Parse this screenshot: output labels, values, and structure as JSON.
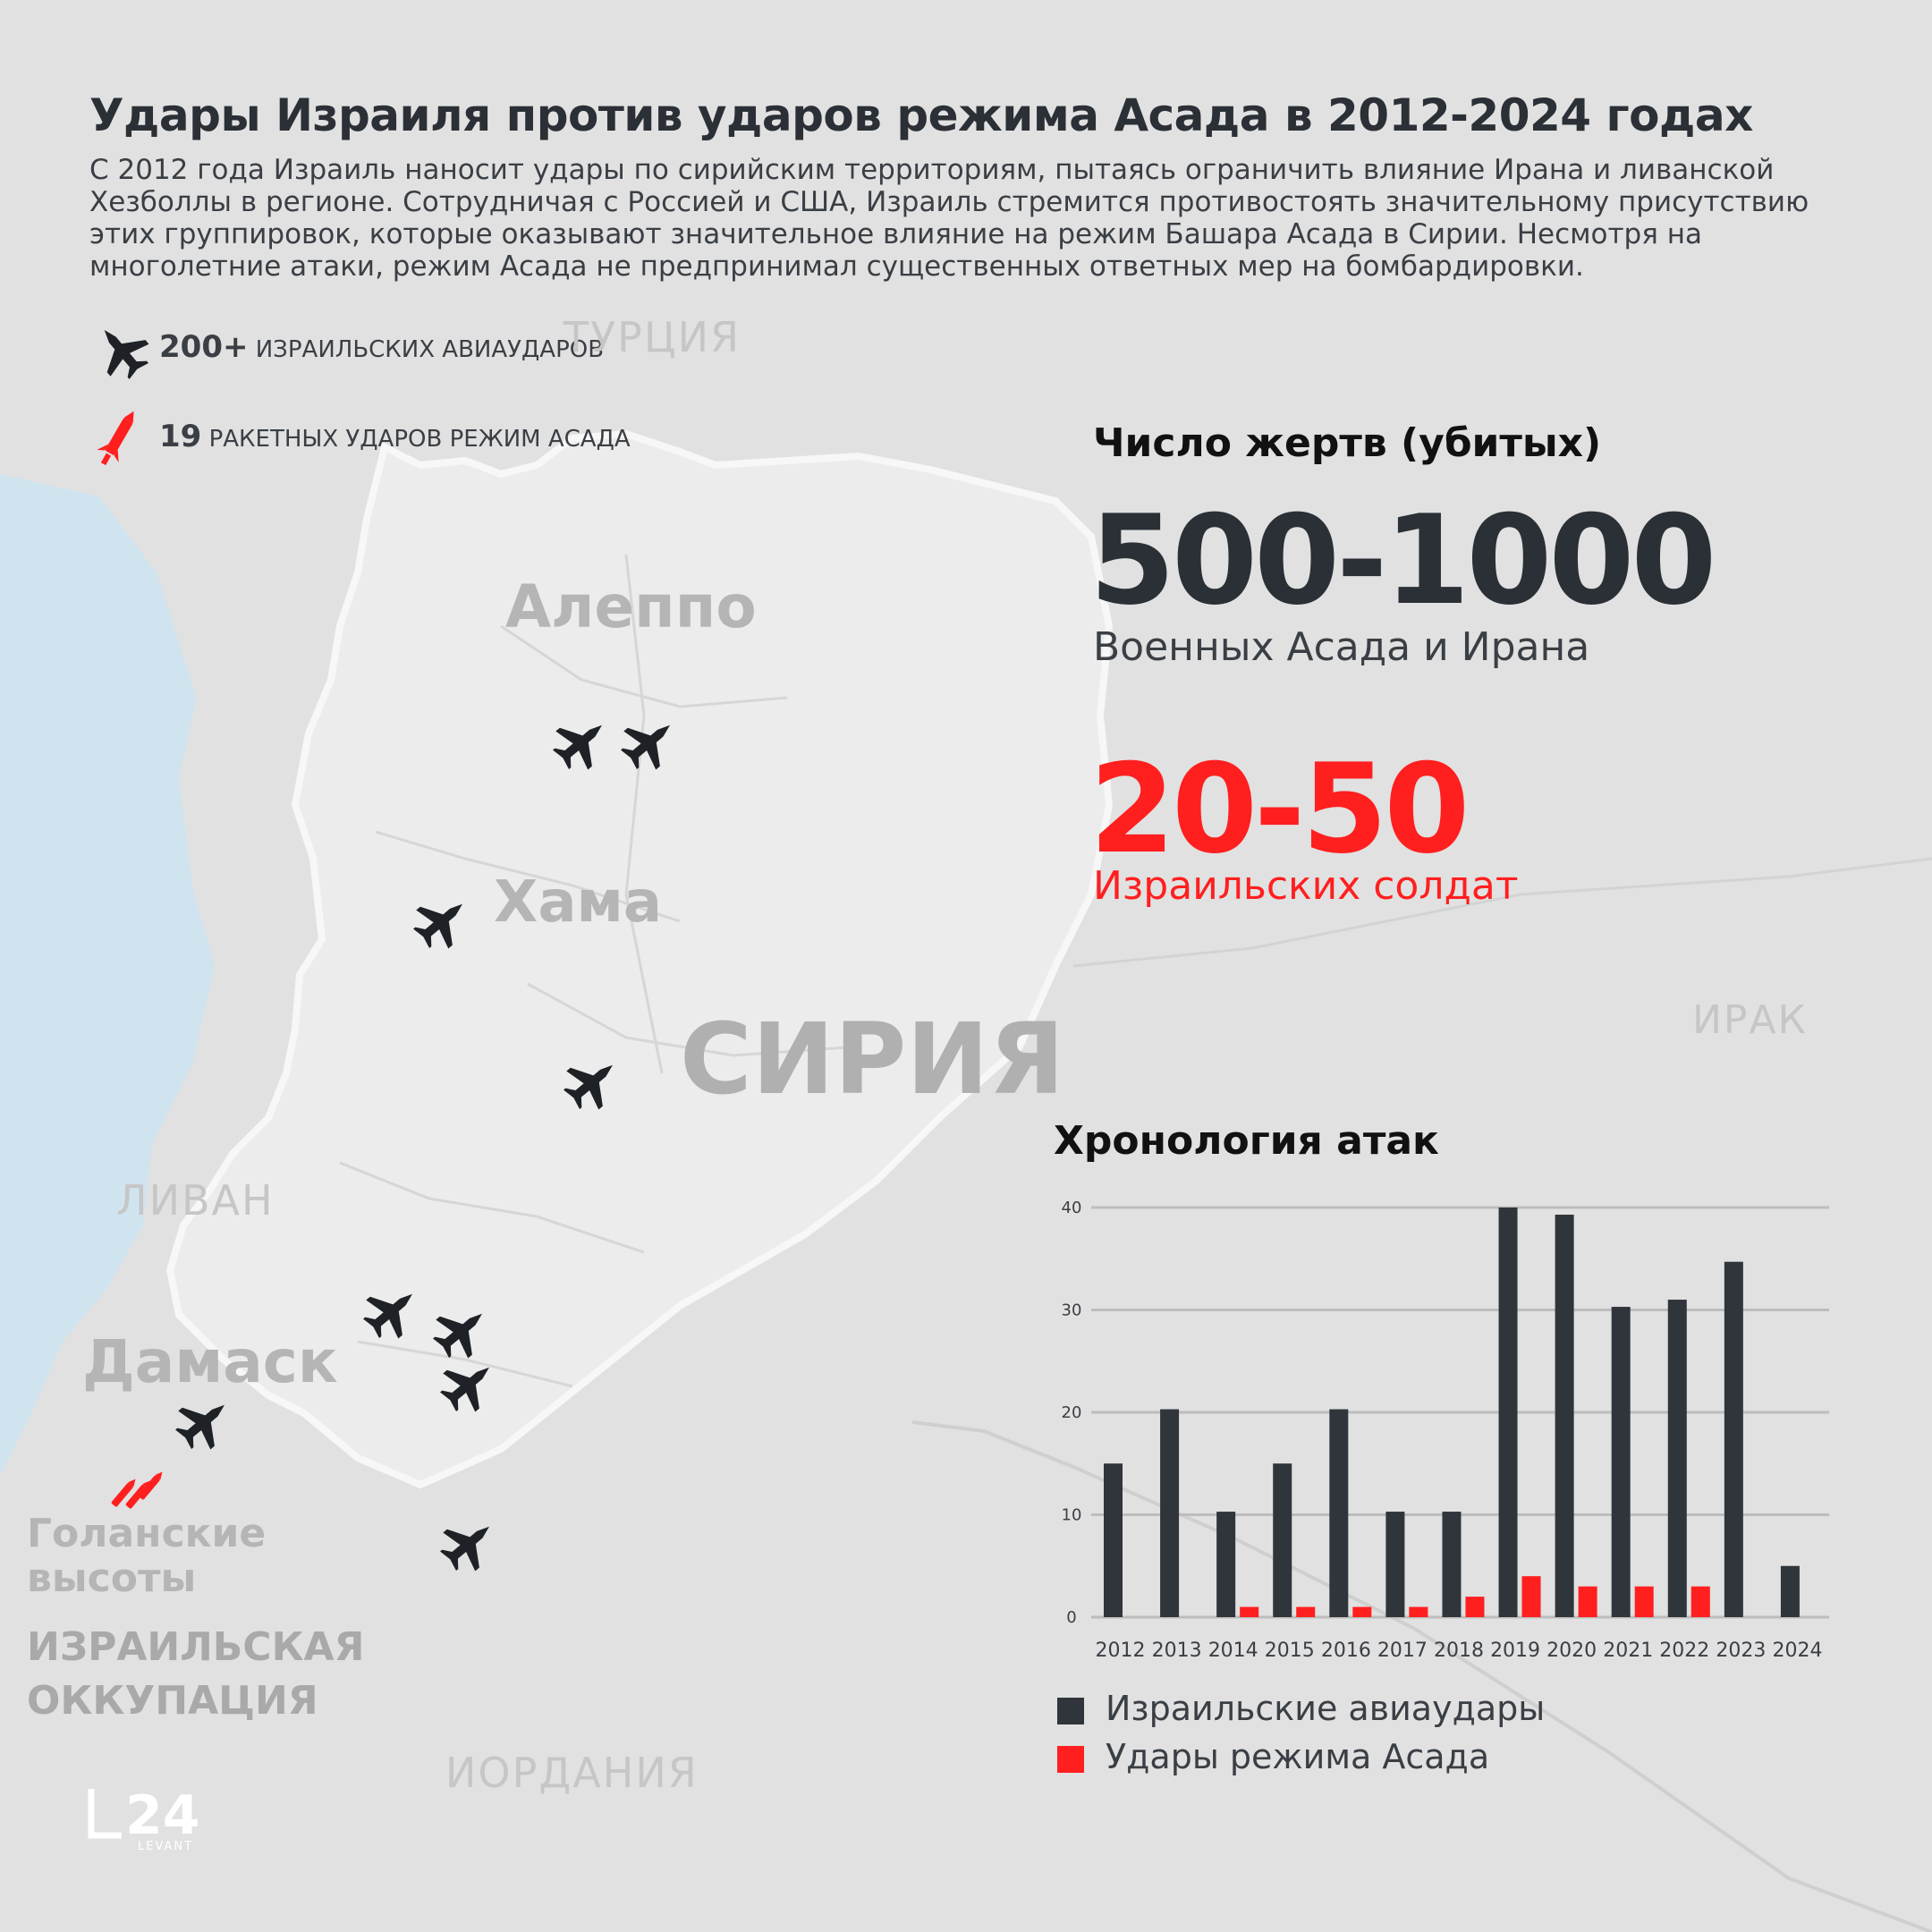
{
  "header": {
    "title": "Удары Израиля против ударов режима Асада в 2012-2024 годах",
    "intro": "С 2012 года Израиль наносит удары по сирийским территориям, пытаясь ограничить влияние Ирана и ливанской Хезболлы в регионе. Сотрудничая с Россией и США, Израиль стремится противостоять значительному присутствию этих группировок, которые оказывают значительное влияние на режим Башара Асада в Сирии. Несмотря на многолетние атаки, режим Асада не предпринимал существенных ответных мер на бомбардировки."
  },
  "stats": {
    "airstrikes_count": "200+",
    "airstrikes_label": "ИЗРАИЛЬСКИХ АВИАУДАРОВ",
    "rockets_count": "19",
    "rockets_label": "РАКЕТНЫХ УДАРОВ РЕЖИМ АСАДА"
  },
  "map": {
    "countries": {
      "turkey": "ТУРЦИЯ",
      "lebanon": "ЛИВАН",
      "iraq": "ИРАК",
      "jordan": "ИОРДАНИЯ"
    },
    "syria": "СИРИЯ",
    "cities": {
      "aleppo": "Алеппо",
      "hama": "Хама",
      "damascus": "Дамаск"
    },
    "golan_line1": "Голанские",
    "golan_line2": "высоты",
    "occupation_line1": "ИЗРАИЛЬСКАЯ",
    "occupation_line2": "ОККУПАЦИЯ",
    "colors": {
      "sea": "#cfe4ee",
      "land": "#ebebeb",
      "outside": "#e0e0e0"
    },
    "icons": [
      "fighter-jet-icon",
      "missile-icon"
    ]
  },
  "casualties": {
    "title": "Число жертв (убитых)",
    "figure1": "500-1000",
    "figure1_label": "Военных Асада и Ирана",
    "figure2": "20-50",
    "figure2_label": "Израильских солдат"
  },
  "chart_title": "Хронология атак",
  "chart_data": {
    "type": "bar",
    "categories": [
      "2012",
      "2013",
      "2014",
      "2015",
      "2016",
      "2017",
      "2018",
      "2019",
      "2020",
      "2021",
      "2022",
      "2023",
      "2024"
    ],
    "series": [
      {
        "name": "Израильские авиаудары",
        "color": "#30353b",
        "values": [
          15,
          20.3,
          10.3,
          15,
          20.3,
          10.3,
          10.3,
          40,
          39.3,
          30.3,
          31,
          34.7,
          5
        ]
      },
      {
        "name": "Удары режима Асада",
        "color": "#ff1f1f",
        "values": [
          0,
          0,
          1,
          1,
          1,
          1,
          2,
          4,
          3,
          3,
          3,
          0,
          0
        ]
      }
    ],
    "yticks": [
      "0",
      "10",
      "20",
      "30",
      "40"
    ],
    "ylim": [
      0,
      40
    ],
    "grid": true,
    "legend": "bottom-left"
  },
  "logo": {
    "main": "i24",
    "sub": "LEVANT"
  }
}
